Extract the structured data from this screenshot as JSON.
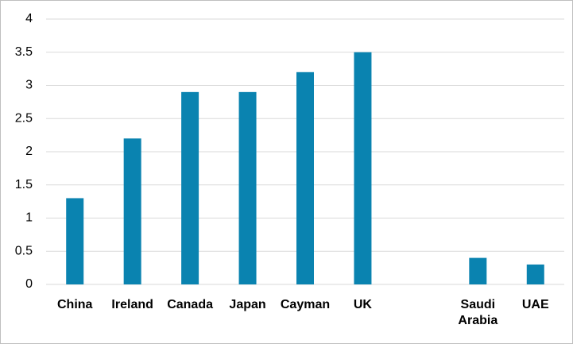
{
  "chart_data": {
    "type": "bar",
    "categories": [
      "China",
      "Ireland",
      "Canada",
      "Japan",
      "Cayman",
      "UK",
      null,
      "Saudi Arabia",
      "UAE"
    ],
    "values": [
      1.3,
      2.2,
      2.9,
      2.9,
      3.2,
      3.5,
      null,
      0.4,
      0.3
    ],
    "color": "#0a83b0",
    "ylim": [
      0,
      4
    ],
    "yticks": [
      0,
      0.5,
      1,
      1.5,
      2,
      2.5,
      3,
      3.5,
      4
    ],
    "grid": true
  }
}
